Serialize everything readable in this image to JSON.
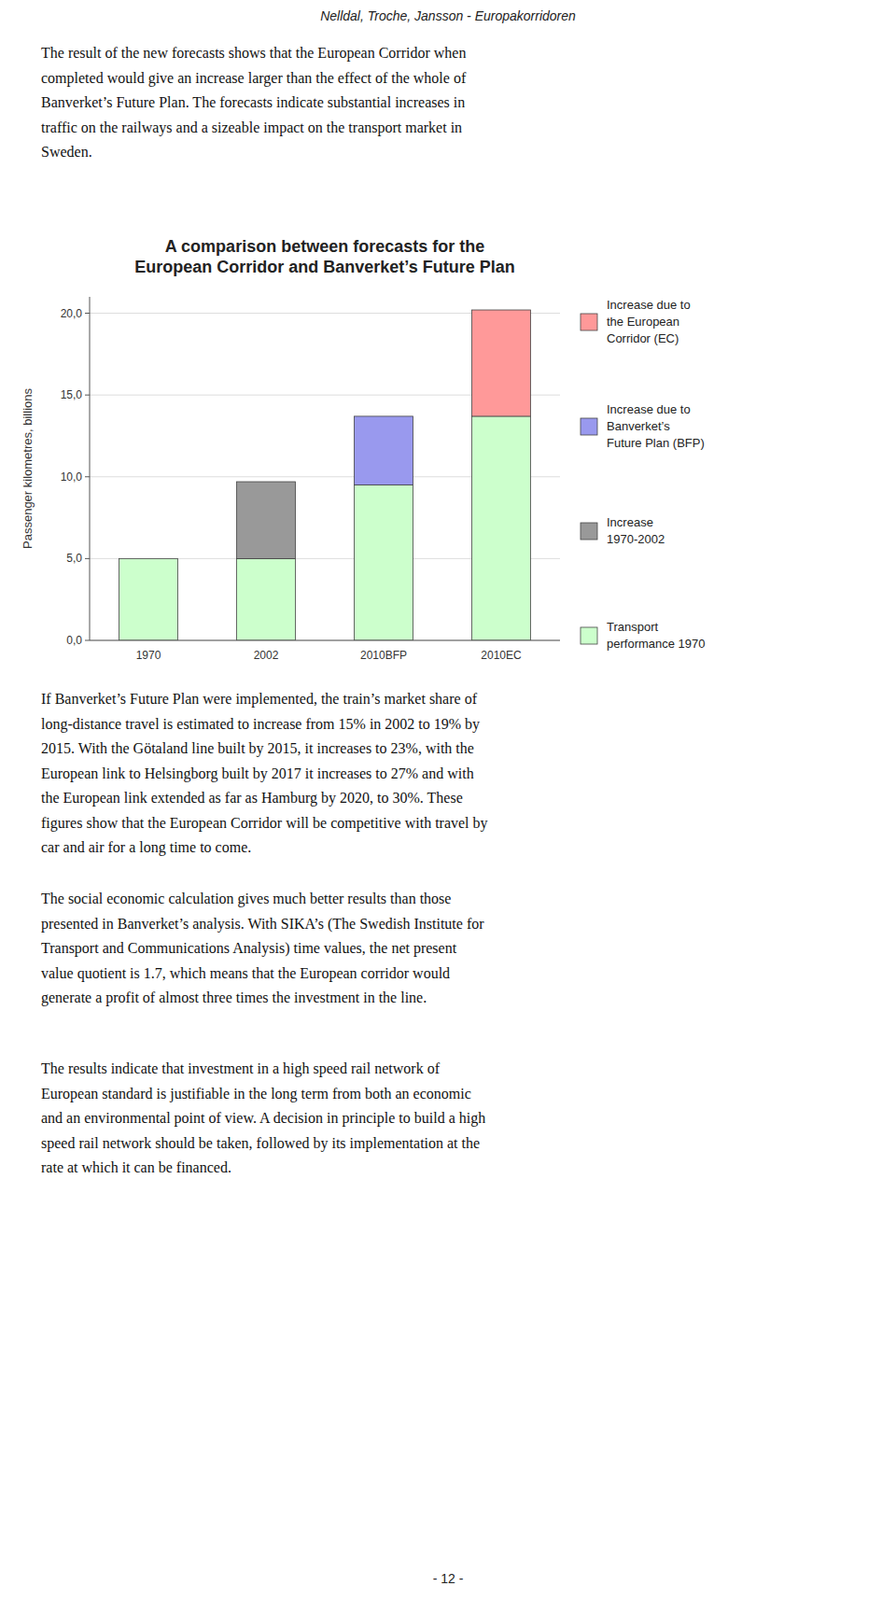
{
  "header": "Nelldal, Troche, Jansson - Europakorridoren",
  "paragraphs": [
    "The result of the new forecasts shows that the European Corridor when\ncompleted would give an increase larger than the effect of the whole of\nBanverket’s Future Plan. The forecasts indicate substantial increases in\ntraffic on the railways and a sizeable impact on the transport market in\nSweden.",
    "If Banverket’s Future Plan were implemented, the train’s market share of\nlong-distance travel is estimated to increase from 15% in 2002 to 19% by\n2015. With the Götaland line built by 2015, it increases to 23%, with the\nEuropean link to Helsingborg built by 2017 it increases to 27% and with\nthe European link extended as far as Hamburg by 2020, to 30%. These\nfigures show that the European Corridor will be competitive with travel by\ncar and air for a long time to come.",
    "The social economic calculation gives much better results than those\npresented in Banverket’s analysis. With SIKA’s (The Swedish Institute for\nTransport and Communications Analysis) time values, the net present\nvalue quotient is 1.7, which means that the European corridor would\ngenerate a profit of almost three times the investment in the line.",
    "The results indicate that investment in a high speed rail network of\nEuropean standard is justifiable in the long term from both an economic\nand an environmental point of view. A decision in principle to build a high\nspeed rail network should be taken, followed by its implementation at the\nrate at which it can be financed."
  ],
  "page_number": "- 12 -",
  "chart_data": {
    "type": "bar",
    "stacked": true,
    "title": "A comparison between forecasts for the\nEuropean Corridor and Banverket’s Future Plan",
    "ylabel": "Passenger kilometres, billions",
    "categories": [
      "1970",
      "2002",
      "2010BFP",
      "2010EC"
    ],
    "series": [
      {
        "name": "Transport\nperformance 1970",
        "color": "#ccffcc",
        "values": [
          5.0,
          5.0,
          9.5,
          13.7
        ]
      },
      {
        "name": "Increase\n1970-2002",
        "color": "#999999",
        "values": [
          0.0,
          4.7,
          0.0,
          0.0
        ]
      },
      {
        "name": "Increase due to\nBanverket’s\nFuture Plan (BFP)",
        "color": "#9999ee",
        "values": [
          0.0,
          0.0,
          4.2,
          0.0
        ]
      },
      {
        "name": "Increase due to\nthe European\nCorridor (EC)",
        "color": "#ff9999",
        "values": [
          0.0,
          0.0,
          0.0,
          6.5
        ]
      }
    ],
    "ylim": [
      0,
      21
    ],
    "yticks": [
      {
        "value": 0.0,
        "label": "0,0"
      },
      {
        "value": 5.0,
        "label": "5,0"
      },
      {
        "value": 10.0,
        "label": "10,0"
      },
      {
        "value": 15.0,
        "label": "15,0"
      },
      {
        "value": 20.0,
        "label": "20,0"
      }
    ],
    "grid": true,
    "legend": "right"
  }
}
